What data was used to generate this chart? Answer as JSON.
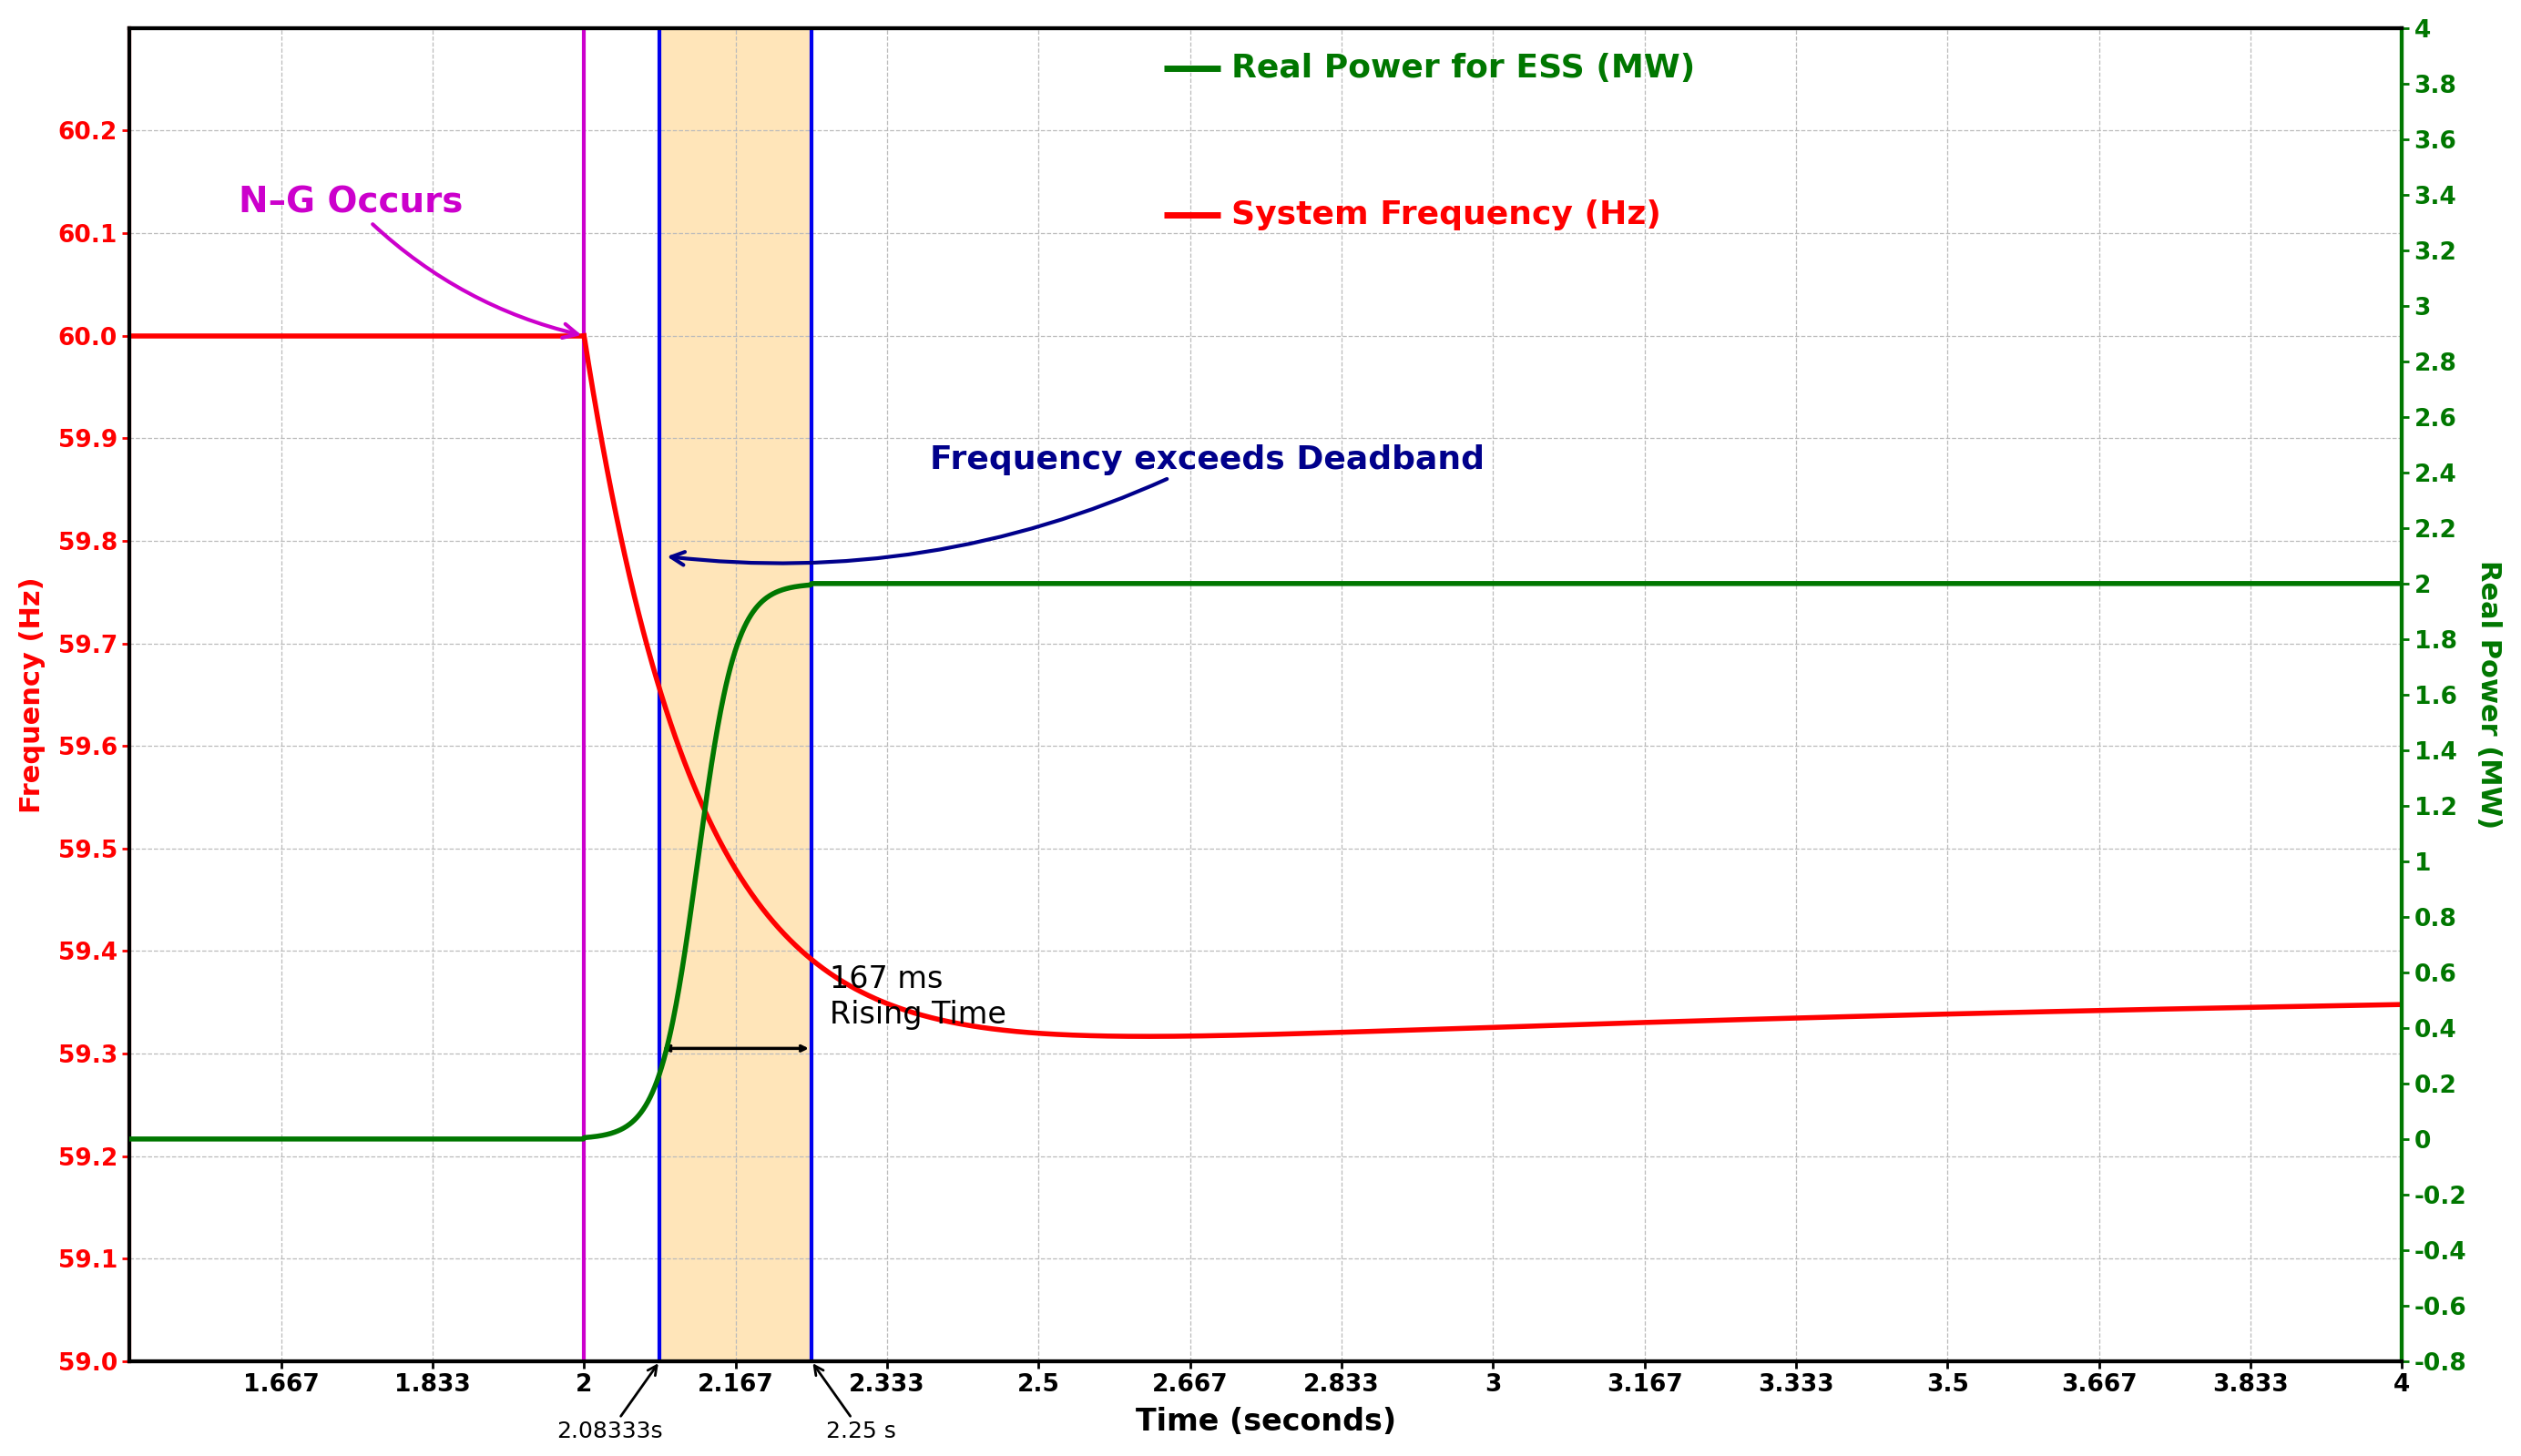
{
  "xlim": [
    1.5,
    4.0
  ],
  "ylim_left": [
    59.0,
    60.3
  ],
  "ylim_right": [
    -0.8,
    4.0
  ],
  "xlabel": "Time (seconds)",
  "ylabel_left": "Frequency (Hz)",
  "ylabel_right": "Real Power (MW)",
  "bg_color": "#ffffff",
  "grid_color": "#bbbbbb",
  "freq_color": "#ff0000",
  "power_color": "#007700",
  "ng_line_color": "#cc00cc",
  "ng_text_color": "#cc00cc",
  "deadband_text_color": "#00008b",
  "orange_band_color": "#ffd080",
  "left_border_color": "#ff0000",
  "right_border_color": "#007700",
  "blue_vline_color": "#0000ee",
  "t_ng": 2.0,
  "t_rise_start": 2.08333,
  "t_rise_end": 2.25,
  "freq_before_ng": 60.0,
  "freq_at_deadband": 59.78,
  "power_before_ng_mw": 0.0,
  "power_final_mw": 2.0,
  "xticks": [
    1.667,
    1.833,
    2.0,
    2.167,
    2.333,
    2.5,
    2.667,
    2.833,
    3.0,
    3.167,
    3.333,
    3.5,
    3.667,
    3.833,
    4.0
  ],
  "xtick_labels": [
    "1.667",
    "1.833",
    "2",
    "2.167",
    "2.333",
    "2.5",
    "2.667",
    "2.833",
    "3",
    "3.167",
    "3.333",
    "3.5",
    "3.667",
    "3.833",
    "4"
  ],
  "yticks_left": [
    59.0,
    59.1,
    59.2,
    59.3,
    59.4,
    59.5,
    59.6,
    59.7,
    59.8,
    59.9,
    60.0,
    60.1,
    60.2
  ],
  "yticks_right": [
    -0.8,
    -0.6,
    -0.4,
    -0.2,
    0.0,
    0.2,
    0.4,
    0.6,
    0.8,
    1.0,
    1.2,
    1.4,
    1.6,
    1.8,
    2.0,
    2.2,
    2.4,
    2.6,
    2.8,
    3.0,
    3.2,
    3.4,
    3.6,
    3.8,
    4.0
  ]
}
